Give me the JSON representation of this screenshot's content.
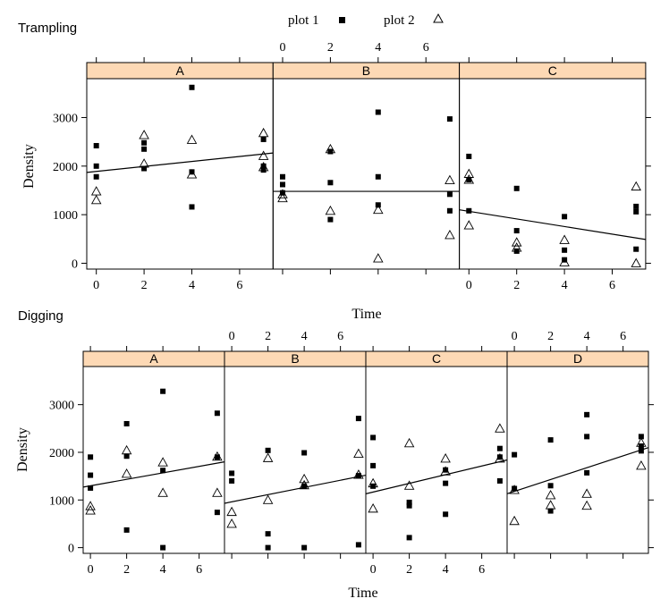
{
  "legend": {
    "plot1_label": "plot 1",
    "plot2_label": "plot 2"
  },
  "colors": {
    "strip": "#fdd9b5",
    "ink": "#000000"
  },
  "chart_data": [
    {
      "type": "scatter",
      "title": "Trampling",
      "xlabel": "Time",
      "ylabel": "Density",
      "xticks": [
        0,
        2,
        4,
        6
      ],
      "yticks": [
        0,
        1000,
        2000,
        3000
      ],
      "xlim": [
        -0.4,
        7.4
      ],
      "ylim": [
        -120,
        3800
      ],
      "grid": false,
      "legend_position": "top-center",
      "panels": [
        {
          "name": "A",
          "fit": [
            [
              -0.4,
              1870
            ],
            [
              7.4,
              2270
            ]
          ],
          "series": [
            {
              "name": "plot 1",
              "marker": "square",
              "x": [
                0,
                0,
                0,
                2,
                2,
                2,
                4,
                4,
                4,
                7,
                7,
                7
              ],
              "y": [
                2420,
                2000,
                1780,
                2480,
                2350,
                1950,
                3620,
                1880,
                1160,
                2550,
                2000,
                1920
              ]
            },
            {
              "name": "plot 2",
              "marker": "triangle",
              "x": [
                0,
                0,
                2,
                2,
                4,
                4,
                7,
                7,
                7
              ],
              "y": [
                1480,
                1300,
                2640,
                2050,
                2540,
                1830,
                2680,
                2210,
                1980
              ]
            }
          ]
        },
        {
          "name": "B",
          "fit": [
            [
              -0.4,
              1480
            ],
            [
              7.4,
              1480
            ]
          ],
          "series": [
            {
              "name": "plot 1",
              "marker": "square",
              "x": [
                0,
                0,
                0,
                2,
                2,
                2,
                4,
                4,
                4,
                7,
                7,
                7
              ],
              "y": [
                1780,
                1620,
                1450,
                2300,
                1660,
                900,
                3110,
                1780,
                1200,
                2970,
                1420,
                1080
              ]
            },
            {
              "name": "plot 2",
              "marker": "triangle",
              "x": [
                0,
                0,
                2,
                2,
                4,
                4,
                7,
                7
              ],
              "y": [
                1420,
                1340,
                2350,
                1080,
                1100,
                100,
                1710,
                580
              ]
            }
          ]
        },
        {
          "name": "C",
          "fit": [
            [
              -0.4,
              1100
            ],
            [
              7.4,
              490
            ]
          ],
          "series": [
            {
              "name": "plot 1",
              "marker": "square",
              "x": [
                0,
                0,
                0,
                2,
                2,
                2,
                4,
                4,
                4,
                7,
                7,
                7
              ],
              "y": [
                2200,
                1720,
                1080,
                1540,
                670,
                250,
                960,
                270,
                70,
                1170,
                1060,
                290
              ]
            },
            {
              "name": "plot 2",
              "marker": "triangle",
              "x": [
                0,
                0,
                0,
                2,
                2,
                4,
                4,
                7,
                7
              ],
              "y": [
                1840,
                1720,
                780,
                430,
                320,
                480,
                20,
                1580,
                0
              ]
            }
          ]
        }
      ]
    },
    {
      "type": "scatter",
      "title": "Digging",
      "xlabel": "Time",
      "ylabel": "Density",
      "xticks": [
        0,
        2,
        4,
        6
      ],
      "yticks": [
        0,
        1000,
        2000,
        3000
      ],
      "xlim": [
        -0.4,
        7.4
      ],
      "ylim": [
        -120,
        3800
      ],
      "grid": false,
      "panels": [
        {
          "name": "A",
          "fit": [
            [
              -0.4,
              1270
            ],
            [
              7.4,
              1800
            ]
          ],
          "series": [
            {
              "name": "plot 1",
              "marker": "square",
              "x": [
                0,
                0,
                0,
                2,
                2,
                2,
                4,
                4,
                4,
                7,
                7,
                7
              ],
              "y": [
                1900,
                1520,
                1250,
                2600,
                1920,
                370,
                3280,
                1620,
                0,
                2820,
                1900,
                740
              ]
            },
            {
              "name": "plot 2",
              "marker": "triangle",
              "x": [
                0,
                0,
                2,
                2,
                4,
                4,
                7,
                7
              ],
              "y": [
                870,
                780,
                2040,
                1550,
                1790,
                1150,
                1910,
                1150
              ]
            }
          ]
        },
        {
          "name": "B",
          "fit": [
            [
              -0.4,
              930
            ],
            [
              7.4,
              1520
            ]
          ],
          "series": [
            {
              "name": "plot 1",
              "marker": "square",
              "x": [
                0,
                0,
                2,
                2,
                2,
                4,
                4,
                4,
                7,
                7,
                7
              ],
              "y": [
                1560,
                1400,
                2040,
                290,
                0,
                1990,
                1290,
                0,
                2710,
                1510,
                60
              ]
            },
            {
              "name": "plot 2",
              "marker": "triangle",
              "x": [
                0,
                0,
                2,
                2,
                4,
                4,
                7,
                7
              ],
              "y": [
                750,
                500,
                1880,
                1000,
                1440,
                1310,
                1970,
                1530
              ]
            }
          ]
        },
        {
          "name": "C",
          "fit": [
            [
              -0.4,
              1130
            ],
            [
              7.4,
              1840
            ]
          ],
          "series": [
            {
              "name": "plot 1",
              "marker": "square",
              "x": [
                0,
                0,
                0,
                2,
                2,
                2,
                4,
                4,
                4,
                7,
                7,
                7
              ],
              "y": [
                2310,
                1720,
                1290,
                950,
                880,
                210,
                1630,
                1350,
                700,
                2080,
                1900,
                1400
              ]
            },
            {
              "name": "plot 2",
              "marker": "triangle",
              "x": [
                0,
                0,
                2,
                2,
                4,
                4,
                7,
                7
              ],
              "y": [
                1350,
                820,
                2190,
                1300,
                1870,
                1600,
                2500,
                1870
              ]
            }
          ]
        },
        {
          "name": "D",
          "fit": [
            [
              -0.4,
              1130
            ],
            [
              7.4,
              2100
            ]
          ],
          "series": [
            {
              "name": "plot 1",
              "marker": "square",
              "x": [
                0,
                0,
                2,
                2,
                2,
                4,
                4,
                4,
                7,
                7,
                7
              ],
              "y": [
                1950,
                1240,
                2260,
                1300,
                770,
                2790,
                2330,
                1570,
                2330,
                2130,
                2030
              ]
            },
            {
              "name": "plot 2",
              "marker": "triangle",
              "x": [
                0,
                0,
                2,
                2,
                4,
                4,
                7,
                7
              ],
              "y": [
                1210,
                560,
                1100,
                890,
                1130,
                880,
                2200,
                1720
              ]
            }
          ]
        }
      ]
    }
  ]
}
